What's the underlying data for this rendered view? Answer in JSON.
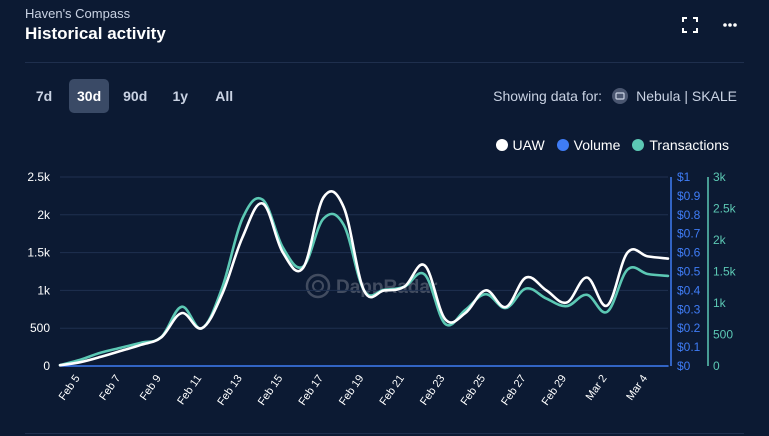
{
  "header": {
    "subtitle": "Haven's Compass",
    "title": "Historical activity",
    "fullscreen_icon": "fullscreen-icon",
    "more_icon": "more-vertical-icon"
  },
  "tabs": [
    {
      "label": "7d",
      "active": false
    },
    {
      "label": "30d",
      "active": true
    },
    {
      "label": "90d",
      "active": false
    },
    {
      "label": "1y",
      "active": false
    },
    {
      "label": "All",
      "active": false
    }
  ],
  "showing": {
    "label": "Showing data for:",
    "project": "Nebula | SKALE"
  },
  "watermark": "DappRadar",
  "colors": {
    "uaw": "#ffffff",
    "volume": "#3f7cf5",
    "transactions": "#5cc8b4",
    "grid": "#1f3050",
    "axis_text": "#ffffff"
  },
  "chart_data": {
    "type": "line",
    "x": [
      "Feb 4",
      "Feb 5",
      "Feb 6",
      "Feb 7",
      "Feb 8",
      "Feb 9",
      "Feb 10",
      "Feb 11",
      "Feb 12",
      "Feb 13",
      "Feb 14",
      "Feb 15",
      "Feb 16",
      "Feb 17",
      "Feb 18",
      "Feb 19",
      "Feb 20",
      "Feb 21",
      "Feb 22",
      "Feb 23",
      "Feb 24",
      "Feb 25",
      "Feb 26",
      "Feb 27",
      "Feb 28",
      "Feb 29",
      "Mar 1",
      "Mar 2",
      "Mar 3",
      "Mar 4",
      "Mar 5"
    ],
    "x_tick_labels": [
      "Feb 5",
      "Feb 7",
      "Feb 9",
      "Feb 11",
      "Feb 13",
      "Feb 15",
      "Feb 17",
      "Feb 19",
      "Feb 21",
      "Feb 23",
      "Feb 25",
      "Feb 27",
      "Feb 29",
      "Mar 2",
      "Mar 4"
    ],
    "series": [
      {
        "name": "UAW",
        "axis": "left",
        "values": [
          10,
          50,
          120,
          200,
          280,
          380,
          700,
          500,
          950,
          1700,
          2150,
          1500,
          1300,
          2230,
          2100,
          1000,
          1000,
          1050,
          1330,
          620,
          700,
          1000,
          780,
          1170,
          1000,
          840,
          1170,
          800,
          1500,
          1450,
          1420
        ]
      },
      {
        "name": "Volume",
        "axis": "middle",
        "values": [
          0,
          0,
          0,
          0,
          0,
          0,
          0,
          0,
          0,
          0,
          0,
          0,
          0,
          0,
          0,
          0,
          0,
          0,
          0,
          0,
          0,
          0,
          0,
          0,
          0,
          0,
          0,
          0,
          0,
          0,
          0
        ]
      },
      {
        "name": "Transactions",
        "axis": "right",
        "values": [
          15,
          100,
          210,
          290,
          370,
          460,
          940,
          600,
          1240,
          2340,
          2640,
          1880,
          1580,
          2340,
          2240,
          1200,
          1210,
          1260,
          1450,
          670,
          890,
          1140,
          920,
          1230,
          1070,
          950,
          1130,
          860,
          1530,
          1460,
          1430
        ]
      }
    ],
    "yaxes": {
      "left": {
        "ticks": [
          "0",
          "500",
          "1k",
          "1.5k",
          "2k",
          "2.5k"
        ],
        "range": [
          0,
          2500
        ]
      },
      "middle": {
        "ticks": [
          "$0",
          "$0.1",
          "$0.2",
          "$0.3",
          "$0.4",
          "$0.5",
          "$0.6",
          "$0.7",
          "$0.8",
          "$0.9",
          "$1"
        ],
        "range": [
          0,
          1
        ]
      },
      "right": {
        "ticks": [
          "0",
          "500",
          "1k",
          "1.5k",
          "2k",
          "2.5k",
          "3k"
        ],
        "range": [
          0,
          3000
        ]
      }
    },
    "legend": [
      "UAW",
      "Volume",
      "Transactions"
    ],
    "legend_position": "top-right",
    "grid": true
  }
}
